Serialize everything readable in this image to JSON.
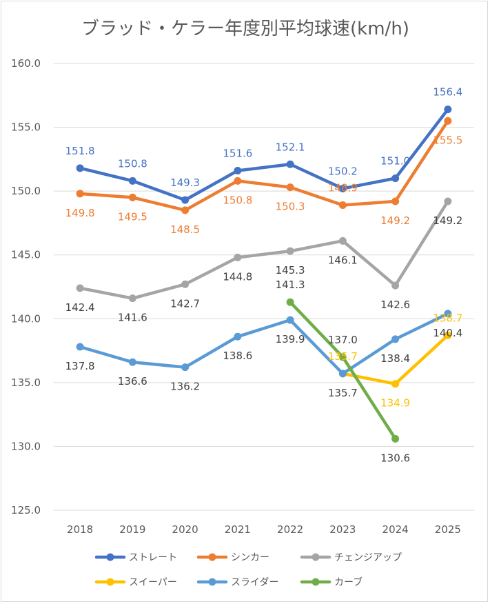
{
  "chart_data": {
    "type": "line",
    "title": "ブラッド・ケラー年度別平均球速(km/h)",
    "xlabel": "",
    "ylabel": "",
    "ylim": [
      125.0,
      160.0
    ],
    "ytick_step": 5,
    "ytick_labels": [
      "125.0",
      "130.0",
      "135.0",
      "140.0",
      "145.0",
      "150.0",
      "155.0",
      "160.0"
    ],
    "grid": true,
    "legend_position": "bottom",
    "categories": [
      "2018",
      "2019",
      "2020",
      "2021",
      "2022",
      "2023",
      "2024",
      "2025"
    ],
    "series": [
      {
        "name": "ストレート",
        "color": "#4472c4",
        "values": [
          151.8,
          150.8,
          149.3,
          151.6,
          152.1,
          150.2,
          151.0,
          156.4
        ],
        "labels": [
          "151.8",
          "150.8",
          "149.3",
          "151.6",
          "152.1",
          "150.2",
          "151.0",
          "156.4"
        ],
        "label_color": "#4472c4"
      },
      {
        "name": "シンカー",
        "color": "#ed7d31",
        "values": [
          149.8,
          149.5,
          148.5,
          150.8,
          150.3,
          148.9,
          149.2,
          155.5
        ],
        "labels": [
          "149.8",
          "149.5",
          "148.5",
          "150.8",
          "150.3",
          "148.9",
          "149.2",
          "155.5"
        ],
        "label_color": "#ed7d31"
      },
      {
        "name": "チェンジアップ",
        "color": "#a5a5a5",
        "values": [
          142.4,
          141.6,
          142.7,
          144.8,
          145.3,
          146.1,
          142.6,
          149.2
        ],
        "labels": [
          "142.4",
          "141.6",
          "142.7",
          "144.8",
          "145.3",
          "146.1",
          "142.6",
          "149.2"
        ],
        "label_color": "#404040"
      },
      {
        "name": "スイーパー",
        "color": "#ffc000",
        "values": [
          null,
          null,
          null,
          null,
          null,
          135.7,
          134.9,
          138.7
        ],
        "labels": [
          null,
          null,
          null,
          null,
          null,
          "135.7",
          "134.9",
          "138.7"
        ],
        "label_color": "#ffc000"
      },
      {
        "name": "スライダー",
        "color": "#5b9bd5",
        "values": [
          137.8,
          136.6,
          136.2,
          138.6,
          139.9,
          135.7,
          138.4,
          140.4
        ],
        "labels": [
          "137.8",
          "136.6",
          "136.2",
          "138.6",
          "139.9",
          "135.7",
          "138.4",
          "140.4"
        ],
        "label_color": "#404040"
      },
      {
        "name": "カーブ",
        "color": "#70ad47",
        "values": [
          null,
          null,
          null,
          null,
          141.3,
          137.0,
          130.6,
          null
        ],
        "labels": [
          null,
          null,
          null,
          null,
          "141.3",
          "137.0",
          "130.6",
          null
        ],
        "label_color": "#404040"
      }
    ]
  }
}
